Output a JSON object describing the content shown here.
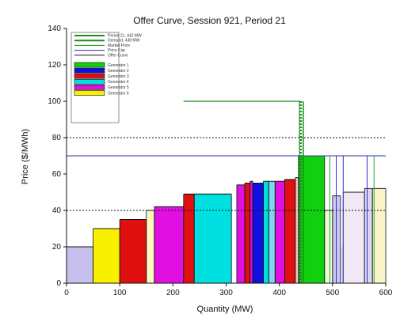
{
  "chart_data": {
    "type": "area",
    "title": "Offer Curve, Session 921, Period 21",
    "xlabel": "Quantity (MW)",
    "ylabel": "Price ($/MWh)",
    "xlim": [
      0,
      600
    ],
    "ylim": [
      0,
      140
    ],
    "x_ticks": [
      0,
      100,
      200,
      300,
      400,
      500,
      600
    ],
    "y_ticks": [
      0,
      20,
      40,
      60,
      80,
      100,
      120,
      140
    ],
    "grid": false,
    "legend_position": "top-left",
    "reference_lines": [
      {
        "kind": "horizontal",
        "y": 70,
        "x_start": 0,
        "x_end": 600,
        "style": "solid",
        "color": "#3333aa"
      },
      {
        "kind": "horizontal",
        "y": 80,
        "x_start": 0,
        "x_end": 600,
        "style": "dotted",
        "color": "#111111"
      },
      {
        "kind": "horizontal",
        "y": 40,
        "x_start": 0,
        "x_end": 600,
        "style": "dotted",
        "color": "#111111"
      },
      {
        "kind": "polyline",
        "points": [
          [
            220,
            100
          ],
          [
            438,
            100
          ],
          [
            438,
            0
          ]
        ],
        "style": "solid",
        "color": "#1c8c1c",
        "width": 1.2
      },
      {
        "kind": "vertical",
        "x": 440,
        "y_start": 0,
        "y_end": 100,
        "style": "dotted",
        "color": "#1c8c1c",
        "width": 3
      },
      {
        "kind": "vertical",
        "x": 445,
        "y_start": 0,
        "y_end": 100,
        "style": "solid",
        "color": "#1c8c1c",
        "width": 1.5
      }
    ],
    "background_blocks": [
      {
        "x0": 0,
        "x1": 50,
        "y": 20,
        "color": "#c8c0ec"
      },
      {
        "x0": 50,
        "x1": 100,
        "y": 20,
        "color": "#fbf7bf"
      },
      {
        "x0": 100,
        "x1": 150,
        "y": 20,
        "color": "#f8c3c3"
      },
      {
        "x0": 150,
        "x1": 165,
        "y": 20,
        "color": "#ffffff"
      },
      {
        "x0": 165,
        "x1": 240,
        "y": 20,
        "color": "#f3b8f0"
      },
      {
        "x0": 240,
        "x1": 310,
        "y": 20,
        "color": "#b8eef0"
      },
      {
        "x0": 310,
        "x1": 325,
        "y": 20,
        "color": "#ffffff"
      },
      {
        "x0": 325,
        "x1": 335,
        "y": 20,
        "color": "#f8b6f8"
      },
      {
        "x0": 335,
        "x1": 345,
        "y": 20,
        "color": "#f8c8d8"
      },
      {
        "x0": 345,
        "x1": 360,
        "y": 20,
        "color": "#cfc7f0"
      },
      {
        "x0": 360,
        "x1": 370,
        "y": 20,
        "color": "#f8b6f8"
      },
      {
        "x0": 370,
        "x1": 380,
        "y": 20,
        "color": "#b8eef0"
      },
      {
        "x0": 380,
        "x1": 395,
        "y": 20,
        "color": "#c7d2f4"
      },
      {
        "x0": 395,
        "x1": 410,
        "y": 20,
        "color": "#cfc0ea"
      },
      {
        "x0": 410,
        "x1": 420,
        "y": 20,
        "color": "#f3bcf0"
      },
      {
        "x0": 420,
        "x1": 430,
        "y": 20,
        "color": "#f8c3c3"
      },
      {
        "x0": 430,
        "x1": 436,
        "y": 20,
        "color": "#f2f2f2"
      },
      {
        "x0": 436,
        "x1": 485,
        "y": 20,
        "color": "#c6f6c6"
      },
      {
        "x0": 485,
        "x1": 500,
        "y": 20,
        "color": "#eefcd8"
      },
      {
        "x0": 500,
        "x1": 515,
        "y": 20,
        "color": "#cbc9f2"
      },
      {
        "x0": 515,
        "x1": 530,
        "y": 20,
        "color": "#f0e8f4"
      },
      {
        "x0": 530,
        "x1": 560,
        "y": 20,
        "color": "#f8e4ef"
      },
      {
        "x0": 560,
        "x1": 575,
        "y": 20,
        "color": "#d9d5f8"
      },
      {
        "x0": 575,
        "x1": 600,
        "y": 20,
        "color": "#fbf4c8"
      }
    ],
    "offer_blocks": [
      {
        "x0": 0,
        "x1": 50,
        "y": 20,
        "color": "#c8c0ec"
      },
      {
        "x0": 50,
        "x1": 100,
        "y": 30,
        "color": "#f8f000"
      },
      {
        "x0": 100,
        "x1": 150,
        "y": 35,
        "color": "#e01010"
      },
      {
        "x0": 150,
        "x1": 165,
        "y": 40,
        "color": "#fbf7bf"
      },
      {
        "x0": 165,
        "x1": 220,
        "y": 42,
        "color": "#e010e0"
      },
      {
        "x0": 220,
        "x1": 240,
        "y": 49,
        "color": "#e01010"
      },
      {
        "x0": 240,
        "x1": 310,
        "y": 49,
        "color": "#00e0e0"
      },
      {
        "x0": 320,
        "x1": 335,
        "y": 54,
        "color": "#e010e0"
      },
      {
        "x0": 335,
        "x1": 345,
        "y": 55,
        "color": "#e01010"
      },
      {
        "x0": 345,
        "x1": 350,
        "y": 56,
        "color": "#e010e0"
      },
      {
        "x0": 350,
        "x1": 370,
        "y": 55,
        "color": "#1010e0"
      },
      {
        "x0": 370,
        "x1": 380,
        "y": 56,
        "color": "#00e0e0"
      },
      {
        "x0": 380,
        "x1": 392,
        "y": 56,
        "color": "#7fd6ef"
      },
      {
        "x0": 392,
        "x1": 410,
        "y": 56,
        "color": "#e010e0"
      },
      {
        "x0": 410,
        "x1": 430,
        "y": 57,
        "color": "#e01010"
      },
      {
        "x0": 430,
        "x1": 436,
        "y": 58,
        "color": "#f8c3c3"
      },
      {
        "x0": 436,
        "x1": 485,
        "y": 70,
        "color": "#10d010"
      },
      {
        "x0": 485,
        "x1": 500,
        "y": 40,
        "color": "#eefcd8"
      },
      {
        "x0": 500,
        "x1": 515,
        "y": 48,
        "color": "#cbc9f2"
      },
      {
        "x0": 520,
        "x1": 560,
        "y": 50,
        "color": "#f0e8f4"
      },
      {
        "x0": 560,
        "x1": 575,
        "y": 52,
        "color": "#d9d5f8"
      },
      {
        "x0": 575,
        "x1": 600,
        "y": 52,
        "color": "#fbf4c8"
      }
    ],
    "offer_lines": [
      {
        "x0": 0,
        "x1": 50,
        "y": 20,
        "color": "#111111"
      },
      {
        "x0": 50,
        "x1": 100,
        "y": 30,
        "color": "#111111"
      },
      {
        "x0": 100,
        "x1": 150,
        "y": 35,
        "color": "#111111"
      },
      {
        "x0": 150,
        "x1": 165,
        "y": 40,
        "color": "#111111"
      },
      {
        "x0": 165,
        "x1": 220,
        "y": 42,
        "color": "#111111"
      },
      {
        "x0": 220,
        "x1": 240,
        "y": 49,
        "color": "#111111"
      },
      {
        "x0": 240,
        "x1": 310,
        "y": 49,
        "color": "#111111"
      },
      {
        "x0": 320,
        "x1": 335,
        "y": 54,
        "color": "#111111"
      },
      {
        "x0": 335,
        "x1": 345,
        "y": 55,
        "color": "#111111"
      },
      {
        "x0": 345,
        "x1": 350,
        "y": 56,
        "color": "#111111"
      },
      {
        "x0": 350,
        "x1": 370,
        "y": 55,
        "color": "#111111"
      },
      {
        "x0": 370,
        "x1": 380,
        "y": 56,
        "color": "#111111"
      },
      {
        "x0": 380,
        "x1": 392,
        "y": 56,
        "color": "#111111"
      },
      {
        "x0": 392,
        "x1": 410,
        "y": 56,
        "color": "#111111"
      },
      {
        "x0": 410,
        "x1": 430,
        "y": 57,
        "color": "#111111"
      },
      {
        "x0": 430,
        "x1": 436,
        "y": 58,
        "color": "#111111"
      },
      {
        "x0": 436,
        "x1": 485,
        "y": 70,
        "color": "#111111"
      },
      {
        "x0": 485,
        "x1": 500,
        "y": 40,
        "color": "#111111"
      },
      {
        "x0": 500,
        "x1": 515,
        "y": 48,
        "color": "#111111"
      },
      {
        "x0": 520,
        "x1": 560,
        "y": 50,
        "color": "#111111"
      },
      {
        "x0": 560,
        "x1": 575,
        "y": 52,
        "color": "#111111"
      },
      {
        "x0": 575,
        "x1": 600,
        "y": 52,
        "color": "#111111"
      }
    ],
    "price_verticals": [
      {
        "x": 495,
        "y0": 0,
        "y1": 70,
        "color": "#20aa20"
      },
      {
        "x": 507,
        "y0": 0,
        "y1": 70,
        "color": "#2b2bd0"
      },
      {
        "x": 520,
        "y0": 0,
        "y1": 70,
        "color": "#2b2bd0"
      },
      {
        "x": 565,
        "y0": 0,
        "y1": 70,
        "color": "#2b2bd0"
      },
      {
        "x": 578,
        "y0": 0,
        "y1": 70,
        "color": "#20aa20"
      }
    ],
    "legend": {
      "lines": [
        {
          "label": "Period 21, 442 MW",
          "color": "#1c8c1c",
          "style": "solid",
          "width": 2
        },
        {
          "label": "Demand, 438 MW",
          "color": "#1c8c1c",
          "style": "solid",
          "width": 2
        },
        {
          "label": "Market Price",
          "color": "#1c8c1c",
          "style": "solid",
          "width": 1
        },
        {
          "label": "Price Cap",
          "color": "#3333aa",
          "style": "solid",
          "width": 1
        },
        {
          "label": "Offer Curve",
          "color": "#111111",
          "style": "solid",
          "width": 1
        }
      ],
      "swatches": [
        {
          "label": "Generator 1",
          "color": "#10d010"
        },
        {
          "label": "Generator 2",
          "color": "#1010e0"
        },
        {
          "label": "Generator 3",
          "color": "#e01010"
        },
        {
          "label": "Generator 4",
          "color": "#00e0e0"
        },
        {
          "label": "Generator 5",
          "color": "#e010e0"
        },
        {
          "label": "Generator 6",
          "color": "#f8f000"
        }
      ]
    }
  }
}
